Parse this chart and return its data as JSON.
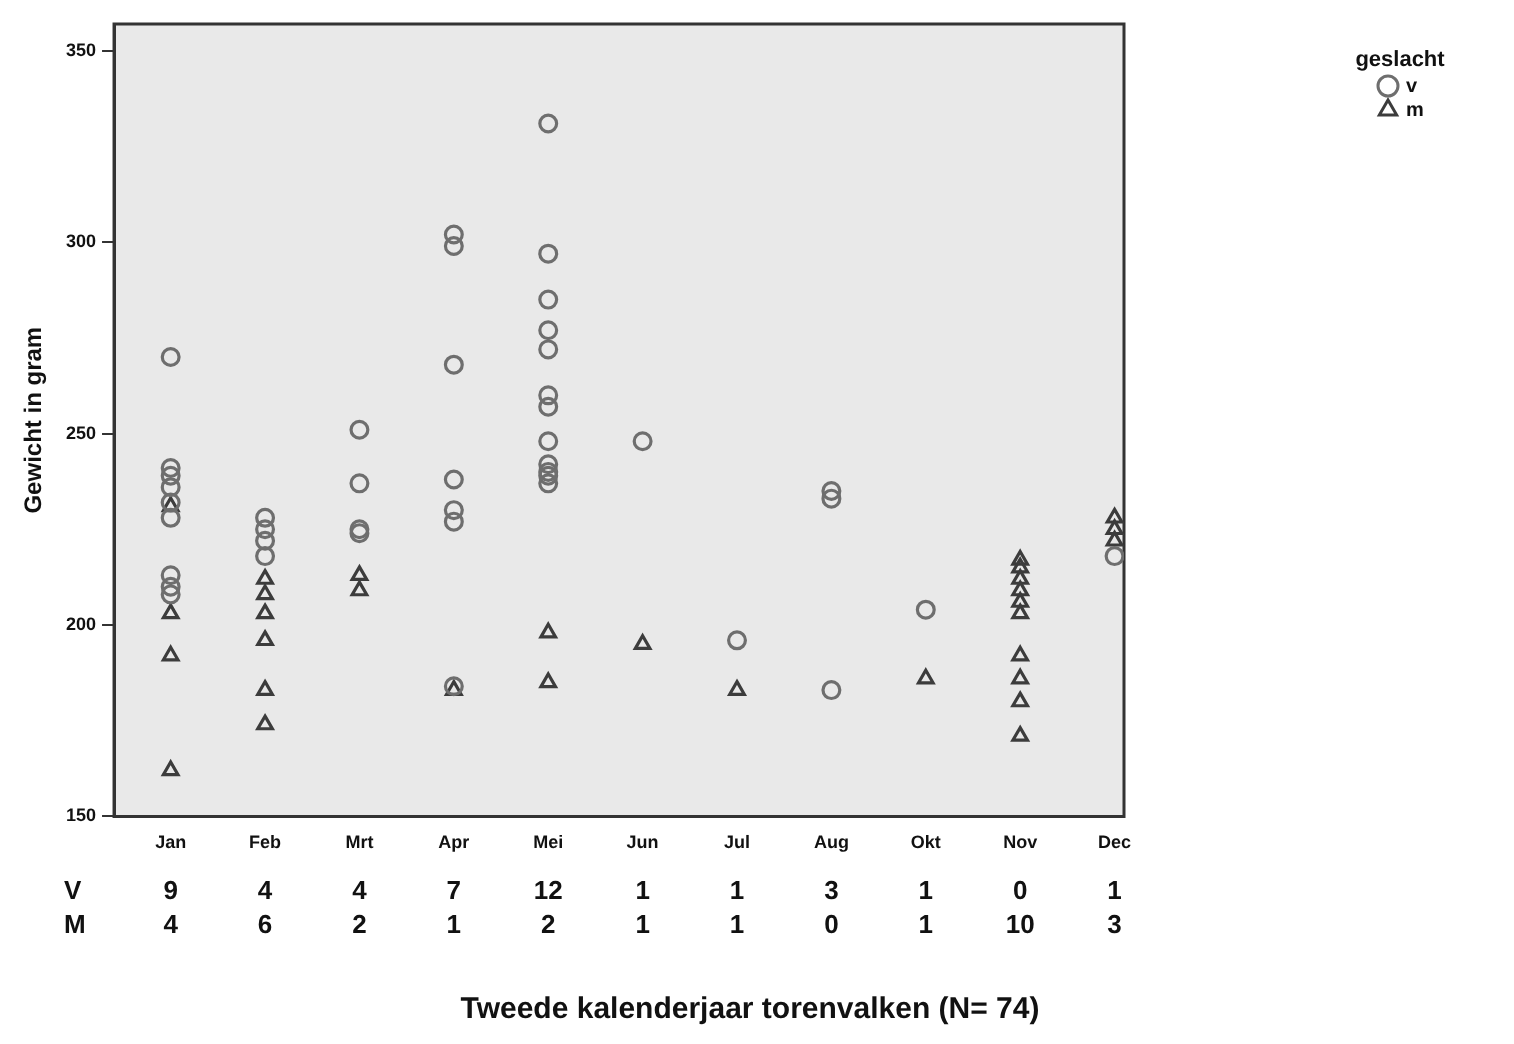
{
  "chart_data": {
    "type": "scatter",
    "xlabel": "Tweede kalenderjaar torenvalken (N= 74)",
    "ylabel": "Gewicht in gram",
    "legend_title": "geslacht",
    "legend": "top right",
    "categories": [
      "Jan",
      "Feb",
      "Mrt",
      "Apr",
      "Mei",
      "Jun",
      "Jul",
      "Aug",
      "Okt",
      "Nov",
      "Dec"
    ],
    "ylim": [
      150,
      357
    ],
    "yticks": [
      150,
      200,
      250,
      300,
      350
    ],
    "grid": false,
    "series": [
      {
        "name": "v",
        "color": "#6e6e6e",
        "marker": "circle",
        "x": [
          "Jan",
          "Jan",
          "Jan",
          "Jan",
          "Jan",
          "Jan",
          "Jan",
          "Jan",
          "Jan",
          "Feb",
          "Feb",
          "Feb",
          "Feb",
          "Mrt",
          "Mrt",
          "Mrt",
          "Mrt",
          "Apr",
          "Apr",
          "Apr",
          "Apr",
          "Apr",
          "Apr",
          "Apr",
          "Mei",
          "Mei",
          "Mei",
          "Mei",
          "Mei",
          "Mei",
          "Mei",
          "Mei",
          "Mei",
          "Mei",
          "Mei",
          "Mei",
          "Jun",
          "Jul",
          "Aug",
          "Aug",
          "Aug",
          "Okt",
          "Dec"
        ],
        "values": [
          270,
          241,
          239,
          236,
          232,
          228,
          213,
          210,
          208,
          228,
          225,
          222,
          218,
          251,
          237,
          225,
          224,
          302,
          299,
          268,
          238,
          230,
          227,
          184,
          331,
          297,
          285,
          277,
          272,
          260,
          257,
          248,
          242,
          240,
          239,
          237,
          248,
          196,
          235,
          233,
          183,
          204,
          218
        ]
      },
      {
        "name": "m",
        "color": "#3c3c3c",
        "marker": "triangle",
        "x": [
          "Jan",
          "Jan",
          "Jan",
          "Jan",
          "Feb",
          "Feb",
          "Feb",
          "Feb",
          "Feb",
          "Feb",
          "Mrt",
          "Mrt",
          "Apr",
          "Mei",
          "Mei",
          "Jun",
          "Jul",
          "Okt",
          "Nov",
          "Nov",
          "Nov",
          "Nov",
          "Nov",
          "Nov",
          "Nov",
          "Nov",
          "Nov",
          "Nov",
          "Dec",
          "Dec",
          "Dec"
        ],
        "values": [
          231,
          203,
          192,
          162,
          212,
          208,
          203,
          196,
          183,
          174,
          213,
          209,
          183,
          198,
          185,
          195,
          183,
          186,
          217,
          215,
          212,
          209,
          206,
          203,
          192,
          186,
          180,
          171,
          228,
          225,
          222
        ]
      }
    ],
    "annotations": [
      "V 9 4 4 7 12 1 1 3 1 0 1",
      "M 4 6 2 1 2 1 1 0 1 10 3"
    ]
  }
}
